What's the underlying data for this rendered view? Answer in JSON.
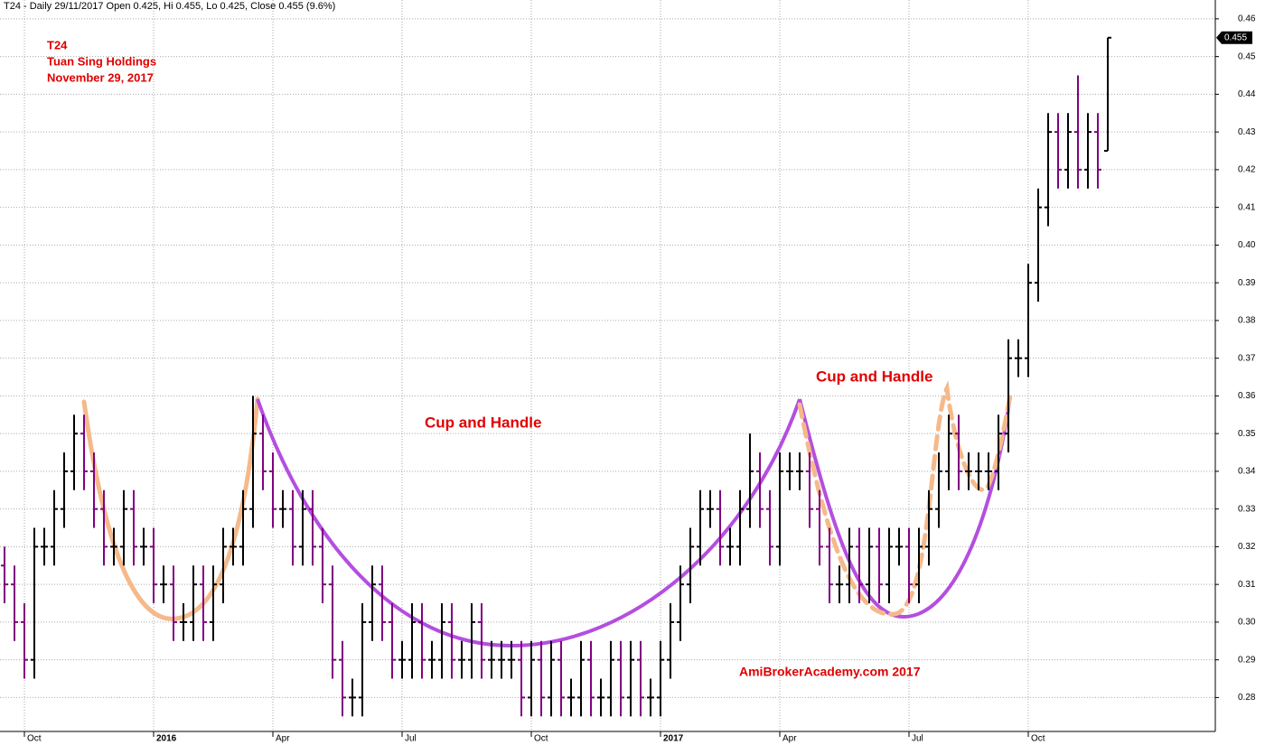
{
  "chart_data": {
    "type": "ohlc",
    "header": "T24 - Daily 29/11/2017 Open 0.425, Hi 0.455, Lo 0.425, Close 0.455 (9.6%)",
    "title_lines": [
      "T24",
      "Tuan Sing Holdings",
      "November 29, 2017"
    ],
    "annotations": [
      "Cup and Handle",
      "Cup and Handle",
      "AmiBrokerAcademy.com  2017"
    ],
    "last_price": 0.455,
    "up_color": "#000000",
    "down_color": "#800080",
    "ylim": [
      0.271,
      0.465
    ],
    "yticks": [
      0.28,
      0.29,
      {
        "value": 0.3,
        "label": "0.30"
      },
      0.31,
      0.32,
      0.33,
      0.34,
      0.35,
      0.36,
      0.37,
      0.38,
      0.39,
      {
        "value": 0.4,
        "label": "0.40"
      },
      0.41,
      0.42,
      0.43,
      0.44,
      0.45,
      0.46
    ],
    "grid": true,
    "categories": [
      null,
      null,
      "Oct",
      null,
      null,
      null,
      null,
      null,
      null,
      null,
      null,
      null,
      null,
      null,
      null,
      "2016",
      null,
      null,
      null,
      null,
      null,
      null,
      null,
      null,
      null,
      null,
      null,
      "Apr",
      null,
      null,
      null,
      null,
      null,
      null,
      null,
      null,
      null,
      null,
      null,
      null,
      "Jul",
      null,
      null,
      null,
      null,
      null,
      null,
      null,
      null,
      null,
      null,
      null,
      null,
      "Oct",
      null,
      null,
      null,
      null,
      null,
      null,
      null,
      null,
      null,
      null,
      null,
      null,
      "2017",
      null,
      null,
      null,
      null,
      null,
      null,
      null,
      null,
      null,
      null,
      null,
      "Apr",
      null,
      null,
      null,
      null,
      null,
      null,
      null,
      null,
      null,
      null,
      null,
      null,
      "Jul",
      null,
      null,
      null,
      null,
      null,
      null,
      null,
      null,
      null,
      null,
      null,
      "Oct",
      null,
      null,
      null,
      null,
      null,
      null,
      null,
      null
    ],
    "ohlc": [
      [
        0.315,
        0.32,
        0.305,
        0.31
      ],
      [
        0.31,
        0.315,
        0.295,
        0.3
      ],
      [
        0.3,
        0.305,
        0.285,
        0.29
      ],
      [
        0.29,
        0.325,
        0.285,
        0.32
      ],
      [
        0.32,
        0.325,
        0.315,
        0.32
      ],
      [
        0.32,
        0.335,
        0.315,
        0.33
      ],
      [
        0.33,
        0.345,
        0.325,
        0.34
      ],
      [
        0.34,
        0.355,
        0.335,
        0.35
      ],
      [
        0.35,
        0.355,
        0.335,
        0.34
      ],
      [
        0.34,
        0.345,
        0.325,
        0.33
      ],
      [
        0.33,
        0.335,
        0.315,
        0.32
      ],
      [
        0.32,
        0.325,
        0.315,
        0.32
      ],
      [
        0.32,
        0.335,
        0.315,
        0.33
      ],
      [
        0.33,
        0.335,
        0.315,
        0.32
      ],
      [
        0.32,
        0.325,
        0.315,
        0.32
      ],
      [
        0.32,
        0.325,
        0.305,
        0.31
      ],
      [
        0.31,
        0.315,
        0.305,
        0.31
      ],
      [
        0.31,
        0.315,
        0.295,
        0.3
      ],
      [
        0.3,
        0.305,
        0.295,
        0.3
      ],
      [
        0.3,
        0.315,
        0.295,
        0.31
      ],
      [
        0.31,
        0.315,
        0.295,
        0.3
      ],
      [
        0.3,
        0.315,
        0.295,
        0.31
      ],
      [
        0.31,
        0.325,
        0.305,
        0.32
      ],
      [
        0.32,
        0.325,
        0.315,
        0.32
      ],
      [
        0.32,
        0.335,
        0.315,
        0.33
      ],
      [
        0.33,
        0.36,
        0.325,
        0.35
      ],
      [
        0.35,
        0.355,
        0.335,
        0.34
      ],
      [
        0.34,
        0.345,
        0.325,
        0.33
      ],
      [
        0.33,
        0.335,
        0.325,
        0.33
      ],
      [
        0.33,
        0.335,
        0.315,
        0.32
      ],
      [
        0.32,
        0.335,
        0.315,
        0.33
      ],
      [
        0.33,
        0.335,
        0.315,
        0.32
      ],
      [
        0.32,
        0.325,
        0.305,
        0.31
      ],
      [
        0.31,
        0.315,
        0.285,
        0.29
      ],
      [
        0.29,
        0.295,
        0.275,
        0.28
      ],
      [
        0.28,
        0.285,
        0.275,
        0.28
      ],
      [
        0.28,
        0.305,
        0.275,
        0.3
      ],
      [
        0.3,
        0.315,
        0.295,
        0.31
      ],
      [
        0.31,
        0.315,
        0.295,
        0.3
      ],
      [
        0.3,
        0.305,
        0.285,
        0.29
      ],
      [
        0.29,
        0.295,
        0.285,
        0.29
      ],
      [
        0.29,
        0.305,
        0.285,
        0.3
      ],
      [
        0.3,
        0.305,
        0.285,
        0.29
      ],
      [
        0.29,
        0.295,
        0.285,
        0.29
      ],
      [
        0.29,
        0.305,
        0.285,
        0.3
      ],
      [
        0.3,
        0.305,
        0.285,
        0.29
      ],
      [
        0.29,
        0.295,
        0.285,
        0.29
      ],
      [
        0.29,
        0.305,
        0.285,
        0.3
      ],
      [
        0.3,
        0.305,
        0.285,
        0.29
      ],
      [
        0.29,
        0.295,
        0.285,
        0.29
      ],
      [
        0.29,
        0.295,
        0.285,
        0.29
      ],
      [
        0.29,
        0.295,
        0.285,
        0.29
      ],
      [
        0.29,
        0.295,
        0.275,
        0.28
      ],
      [
        0.28,
        0.295,
        0.275,
        0.29
      ],
      [
        0.29,
        0.295,
        0.275,
        0.28
      ],
      [
        0.28,
        0.295,
        0.275,
        0.29
      ],
      [
        0.29,
        0.295,
        0.275,
        0.28
      ],
      [
        0.28,
        0.285,
        0.275,
        0.28
      ],
      [
        0.28,
        0.295,
        0.275,
        0.29
      ],
      [
        0.29,
        0.295,
        0.275,
        0.28
      ],
      [
        0.28,
        0.285,
        0.275,
        0.28
      ],
      [
        0.28,
        0.295,
        0.275,
        0.29
      ],
      [
        0.29,
        0.295,
        0.275,
        0.28
      ],
      [
        0.28,
        0.295,
        0.275,
        0.29
      ],
      [
        0.29,
        0.295,
        0.275,
        0.28
      ],
      [
        0.28,
        0.285,
        0.275,
        0.28
      ],
      [
        0.28,
        0.295,
        0.275,
        0.29
      ],
      [
        0.29,
        0.305,
        0.285,
        0.3
      ],
      [
        0.3,
        0.315,
        0.295,
        0.31
      ],
      [
        0.31,
        0.325,
        0.305,
        0.32
      ],
      [
        0.32,
        0.335,
        0.315,
        0.33
      ],
      [
        0.33,
        0.335,
        0.325,
        0.33
      ],
      [
        0.33,
        0.335,
        0.315,
        0.32
      ],
      [
        0.32,
        0.325,
        0.315,
        0.32
      ],
      [
        0.32,
        0.335,
        0.315,
        0.33
      ],
      [
        0.33,
        0.35,
        0.325,
        0.34
      ],
      [
        0.34,
        0.345,
        0.325,
        0.33
      ],
      [
        0.33,
        0.335,
        0.315,
        0.32
      ],
      [
        0.32,
        0.345,
        0.315,
        0.34
      ],
      [
        0.34,
        0.345,
        0.335,
        0.34
      ],
      [
        0.34,
        0.345,
        0.335,
        0.34
      ],
      [
        0.34,
        0.345,
        0.325,
        0.33
      ],
      [
        0.33,
        0.335,
        0.315,
        0.32
      ],
      [
        0.32,
        0.325,
        0.305,
        0.31
      ],
      [
        0.31,
        0.315,
        0.305,
        0.31
      ],
      [
        0.31,
        0.325,
        0.305,
        0.32
      ],
      [
        0.32,
        0.325,
        0.305,
        0.31
      ],
      [
        0.31,
        0.325,
        0.305,
        0.32
      ],
      [
        0.32,
        0.325,
        0.305,
        0.31
      ],
      [
        0.31,
        0.325,
        0.305,
        0.32
      ],
      [
        0.32,
        0.325,
        0.315,
        0.32
      ],
      [
        0.32,
        0.325,
        0.305,
        0.31
      ],
      [
        0.31,
        0.325,
        0.305,
        0.32
      ],
      [
        0.32,
        0.335,
        0.315,
        0.33
      ],
      [
        0.33,
        0.345,
        0.325,
        0.34
      ],
      [
        0.34,
        0.355,
        0.335,
        0.35
      ],
      [
        0.35,
        0.355,
        0.335,
        0.34
      ],
      [
        0.34,
        0.345,
        0.335,
        0.34
      ],
      [
        0.34,
        0.345,
        0.335,
        0.34
      ],
      [
        0.34,
        0.345,
        0.335,
        0.34
      ],
      [
        0.34,
        0.355,
        0.335,
        0.35
      ],
      [
        0.35,
        0.375,
        0.345,
        0.37
      ],
      [
        0.37,
        0.375,
        0.365,
        0.37
      ],
      [
        0.37,
        0.395,
        0.365,
        0.39
      ],
      [
        0.39,
        0.415,
        0.385,
        0.41
      ],
      [
        0.41,
        0.435,
        0.405,
        0.43
      ],
      [
        0.43,
        0.435,
        0.415,
        0.42
      ],
      [
        0.42,
        0.435,
        0.415,
        0.43
      ],
      [
        0.43,
        0.445,
        0.415,
        0.42
      ],
      [
        0.42,
        0.435,
        0.415,
        0.43
      ],
      [
        0.43,
        0.435,
        0.415,
        0.42
      ],
      [
        0.425,
        0.455,
        0.425,
        0.455
      ]
    ]
  }
}
